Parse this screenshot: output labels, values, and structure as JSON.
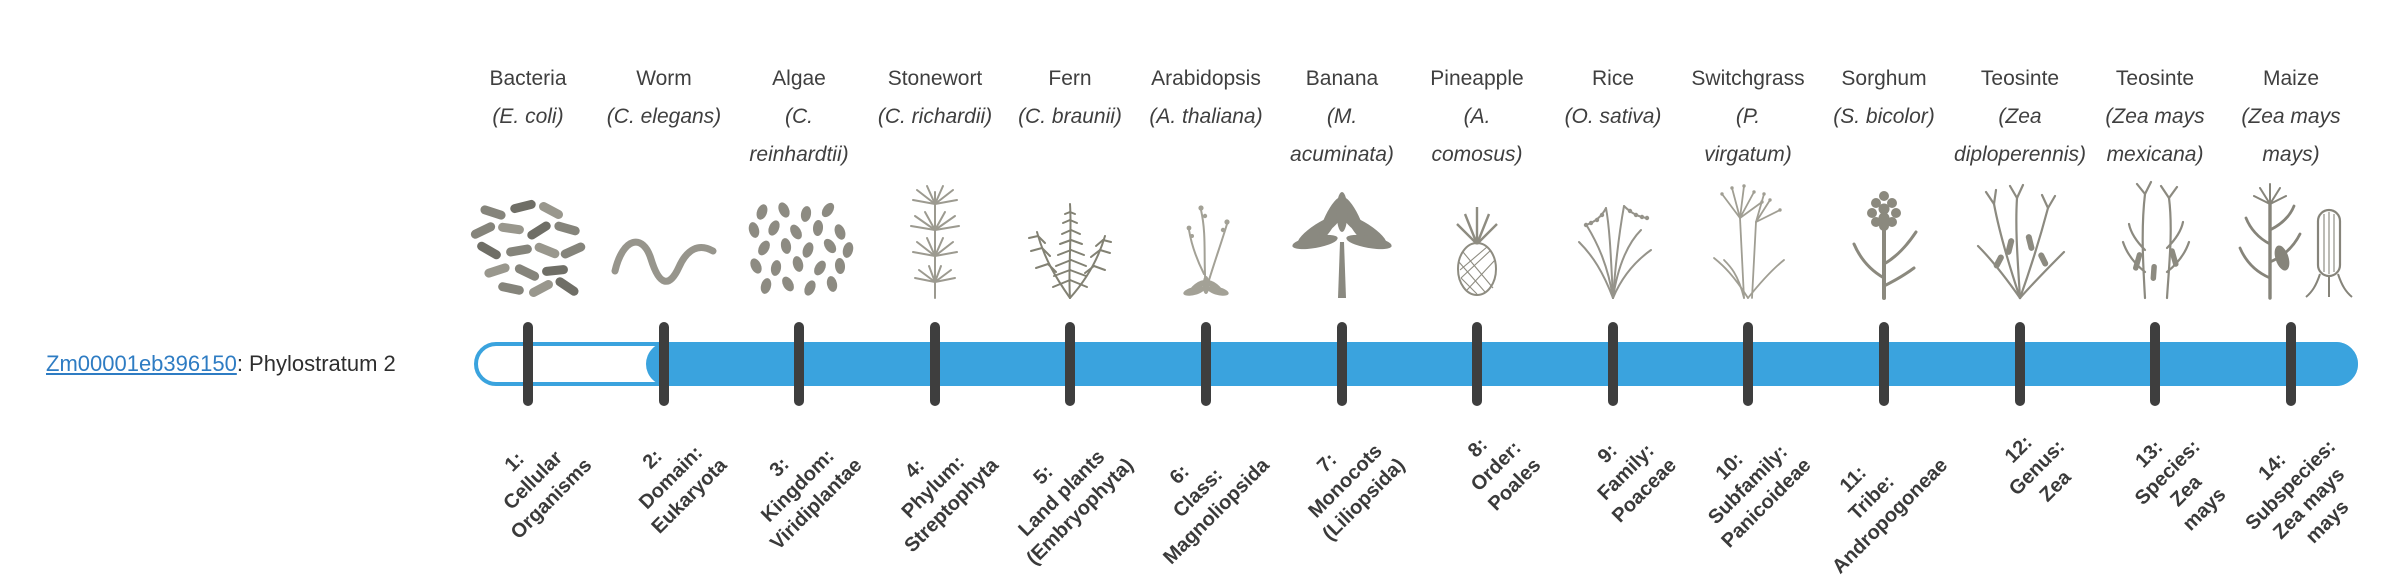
{
  "gene": {
    "id": "Zm00001eb396150",
    "suffix": ": Phylostratum 2",
    "phylostratum": 2,
    "link_color": "#2e7cc3"
  },
  "timeline": {
    "bar_color": "#3aa3de",
    "tick_color": "#3e3e3e",
    "unfilled_track_color": "#ffffff",
    "fill_starts_at_stratum": 2
  },
  "strata": [
    {
      "number": "1",
      "organism": "Bacteria",
      "scientific": "(E. coli)",
      "icon": "bacteria",
      "clade": "1:\nCellular\nOrganisms"
    },
    {
      "number": "2",
      "organism": "Worm",
      "scientific": "(C. elegans)",
      "icon": "worm",
      "clade": "2:\nDomain:\nEukaryota"
    },
    {
      "number": "3",
      "organism": "Algae",
      "scientific": "(C.\nreinhardtii)",
      "icon": "algae",
      "clade": "3:\nKingdom:\nViridiplantae"
    },
    {
      "number": "4",
      "organism": "Stonewort",
      "scientific": "(C. richardii)",
      "icon": "stonewort",
      "clade": "4:\nPhylum:\nStreptophyta"
    },
    {
      "number": "5",
      "organism": "Fern",
      "scientific": "(C. braunii)",
      "icon": "fern",
      "clade": "5:\nLand plants\n(Embryophyta)"
    },
    {
      "number": "6",
      "organism": "Arabidopsis",
      "scientific": "(A. thaliana)",
      "icon": "arabidopsis",
      "clade": "6:\nClass:\nMagnoliopsida"
    },
    {
      "number": "7",
      "organism": "Banana",
      "scientific": "(M.\nacuminata)",
      "icon": "banana",
      "clade": "7:\nMonocots\n(Liliopsida)"
    },
    {
      "number": "8",
      "organism": "Pineapple",
      "scientific": "(A.\ncomosus)",
      "icon": "pineapple",
      "clade": "8:\nOrder:\nPoales"
    },
    {
      "number": "9",
      "organism": "Rice",
      "scientific": "(O. sativa)",
      "icon": "rice",
      "clade": "9:\nFamily:\nPoaceae"
    },
    {
      "number": "10",
      "organism": "Switchgrass",
      "scientific": "(P.\nvirgatum)",
      "icon": "switchgrass",
      "clade": "10:\nSubfamily:\nPanicoideae"
    },
    {
      "number": "11",
      "organism": "Sorghum",
      "scientific": "(S. bicolor)",
      "icon": "sorghum",
      "clade": "11:\nTribe:\nAndropogoneae"
    },
    {
      "number": "12",
      "organism": "Teosinte",
      "scientific": "(Zea\ndiploperennis)",
      "icon": "teosinte-diploperennis",
      "clade": "12:\nGenus:\nZea"
    },
    {
      "number": "13",
      "organism": "Teosinte",
      "scientific": "(Zea mays\nmexicana)",
      "icon": "teosinte-mexicana",
      "clade": "13:\nSpecies:\nZea\nmays"
    },
    {
      "number": "14",
      "organism": "Maize",
      "scientific": "(Zea mays\nmays)",
      "icon": "maize",
      "clade": "14:\nSubspecies:\nZea mays\nmays"
    }
  ]
}
